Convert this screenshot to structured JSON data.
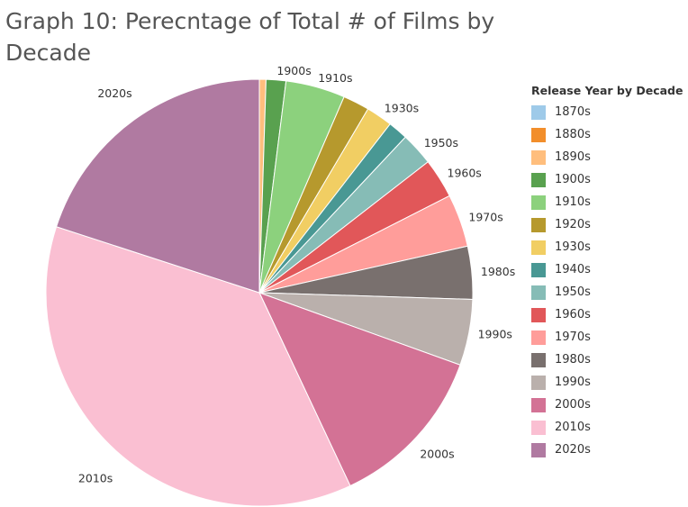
{
  "title": "Graph 10: Perecntage of Total # of Films by Decade",
  "legend": {
    "title": "Release Year by Decade"
  },
  "chart_data": {
    "type": "pie",
    "title": "Graph 10: Perecntage of Total # of Films by Decade",
    "legend_title": "Release Year by Decade",
    "legend_position": "right",
    "slices": [
      {
        "label": "1870s",
        "value": 0.0,
        "color": "#9ecae9"
      },
      {
        "label": "1880s",
        "value": 0.0,
        "color": "#f28e2b"
      },
      {
        "label": "1890s",
        "value": 0.5,
        "color": "#ffbe7d"
      },
      {
        "label": "1900s",
        "value": 1.5,
        "color": "#59a14f"
      },
      {
        "label": "1910s",
        "value": 4.5,
        "color": "#8cd17d"
      },
      {
        "label": "1920s",
        "value": 2.0,
        "color": "#b6992d"
      },
      {
        "label": "1930s",
        "value": 2.0,
        "color": "#f1ce63"
      },
      {
        "label": "1940s",
        "value": 1.5,
        "color": "#499894"
      },
      {
        "label": "1950s",
        "value": 2.5,
        "color": "#86bcb6"
      },
      {
        "label": "1960s",
        "value": 3.0,
        "color": "#e15759"
      },
      {
        "label": "1970s",
        "value": 4.0,
        "color": "#ff9d9a"
      },
      {
        "label": "1980s",
        "value": 4.0,
        "color": "#79706e"
      },
      {
        "label": "1990s",
        "value": 5.0,
        "color": "#bab0ac"
      },
      {
        "label": "2000s",
        "value": 12.5,
        "color": "#d37295"
      },
      {
        "label": "2010s",
        "value": 37.0,
        "color": "#fabfd2"
      },
      {
        "label": "2020s",
        "value": 20.0,
        "color": "#b07aa1"
      }
    ],
    "visible_labels": [
      "1900s",
      "1910s",
      "1930s",
      "1950s",
      "1960s",
      "1970s",
      "1980s",
      "1990s",
      "2000s",
      "2010s",
      "2020s"
    ]
  }
}
